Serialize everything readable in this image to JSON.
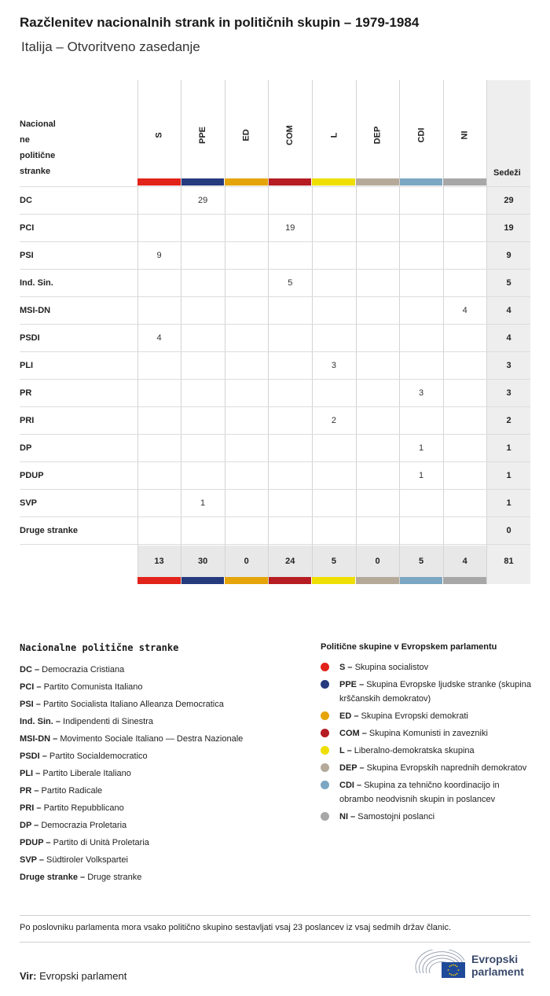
{
  "title": "Razčlenitev nacionalnih strank in političnih skupin – 1979-1984",
  "subtitle": "Italija – Otvoritveno zasedanje",
  "table": {
    "party_header": [
      "Nacional",
      "ne",
      "politične",
      "stranke"
    ],
    "seats_header": "Sedeži",
    "groups": [
      {
        "code": "S",
        "color": "#e2231a"
      },
      {
        "code": "PPE",
        "color": "#263a7e"
      },
      {
        "code": "ED",
        "color": "#e5a50a"
      },
      {
        "code": "COM",
        "color": "#b61d22"
      },
      {
        "code": "L",
        "color": "#eedf00"
      },
      {
        "code": "DEP",
        "color": "#b5aa9a"
      },
      {
        "code": "CDI",
        "color": "#7ba7c2"
      },
      {
        "code": "NI",
        "color": "#a7a7a7"
      }
    ],
    "rows": [
      {
        "party": "DC",
        "values": [
          "",
          "29",
          "",
          "",
          "",
          "",
          "",
          ""
        ],
        "total": "29"
      },
      {
        "party": "PCI",
        "values": [
          "",
          "",
          "",
          "19",
          "",
          "",
          "",
          ""
        ],
        "total": "19"
      },
      {
        "party": "PSI",
        "values": [
          "9",
          "",
          "",
          "",
          "",
          "",
          "",
          ""
        ],
        "total": "9"
      },
      {
        "party": "Ind. Sin.",
        "values": [
          "",
          "",
          "",
          "5",
          "",
          "",
          "",
          ""
        ],
        "total": "5"
      },
      {
        "party": "MSI-DN",
        "values": [
          "",
          "",
          "",
          "",
          "",
          "",
          "",
          "4"
        ],
        "total": "4"
      },
      {
        "party": "PSDI",
        "values": [
          "4",
          "",
          "",
          "",
          "",
          "",
          "",
          ""
        ],
        "total": "4"
      },
      {
        "party": "PLI",
        "values": [
          "",
          "",
          "",
          "",
          "3",
          "",
          "",
          ""
        ],
        "total": "3"
      },
      {
        "party": "PR",
        "values": [
          "",
          "",
          "",
          "",
          "",
          "",
          "3",
          ""
        ],
        "total": "3"
      },
      {
        "party": "PRI",
        "values": [
          "",
          "",
          "",
          "",
          "2",
          "",
          "",
          ""
        ],
        "total": "2"
      },
      {
        "party": "DP",
        "values": [
          "",
          "",
          "",
          "",
          "",
          "",
          "1",
          ""
        ],
        "total": "1"
      },
      {
        "party": "PDUP",
        "values": [
          "",
          "",
          "",
          "",
          "",
          "",
          "1",
          ""
        ],
        "total": "1"
      },
      {
        "party": "SVP",
        "values": [
          "",
          "1",
          "",
          "",
          "",
          "",
          "",
          ""
        ],
        "total": "1"
      },
      {
        "party": "Druge stranke",
        "values": [
          "",
          "",
          "",
          "",
          "",
          "",
          "",
          ""
        ],
        "total": "0"
      }
    ],
    "totals": [
      "13",
      "30",
      "0",
      "24",
      "5",
      "0",
      "5",
      "4"
    ],
    "grand_total": "81"
  },
  "legend_parties": {
    "title": "Nacionalne politične stranke",
    "items": [
      {
        "code": "DC",
        "name": "Democrazia Cristiana"
      },
      {
        "code": "PCI",
        "name": "Partito Comunista Italiano"
      },
      {
        "code": "PSI",
        "name": "Partito Socialista Italiano Alleanza Democratica"
      },
      {
        "code": "Ind. Sin.",
        "name": "Indipendenti di Sinestra"
      },
      {
        "code": "MSI-DN",
        "name": "Movimento Sociale Italiano — Destra Nazionale"
      },
      {
        "code": "PSDI",
        "name": "Partito Socialdemocratico"
      },
      {
        "code": "PLI",
        "name": "Partito Liberale Italiano"
      },
      {
        "code": "PR",
        "name": "Partito Radicale"
      },
      {
        "code": "PRI",
        "name": "Partito Repubblicano"
      },
      {
        "code": "DP",
        "name": "Democrazia Proletaria"
      },
      {
        "code": "PDUP",
        "name": "Partito di Unità Proletaria"
      },
      {
        "code": "SVP",
        "name": "Südtiroler Volkspartei"
      },
      {
        "code": "Druge stranke",
        "name": "Druge stranke"
      }
    ]
  },
  "legend_groups": {
    "title": "Politične skupine v Evropskem parlamentu",
    "items": [
      {
        "code": "S",
        "name": "Skupina socialistov",
        "color": "#e2231a"
      },
      {
        "code": "PPE",
        "name": "Skupina Evropske ljudske stranke (skupina krščanskih demokratov)",
        "color": "#263a7e"
      },
      {
        "code": "ED",
        "name": "Skupina Evropski demokrati",
        "color": "#e5a50a"
      },
      {
        "code": "COM",
        "name": "Skupina Komunisti in zavezniki",
        "color": "#b61d22"
      },
      {
        "code": "L",
        "name": "Liberalno-demokratska skupina",
        "color": "#eedf00"
      },
      {
        "code": "DEP",
        "name": "Skupina Evropskih naprednih demokratov",
        "color": "#b5aa9a"
      },
      {
        "code": "CDI",
        "name": "Skupina za tehnično koordinacijo in obrambo neodvisnih skupin in poslancev",
        "color": "#7ba7c2"
      },
      {
        "code": "NI",
        "name": "Samostojni poslanci",
        "color": "#a7a7a7"
      }
    ]
  },
  "footnote": "Po poslovniku parlamenta mora vsako politično skupino sestavljati vsaj 23 poslancev iz vsaj sedmih držav članic.",
  "source": {
    "label": "Vir:",
    "value": "Evropski parlament"
  },
  "logo": {
    "line1": "Evropski",
    "line2": "parlament",
    "icon": "european-parliament-icon"
  }
}
